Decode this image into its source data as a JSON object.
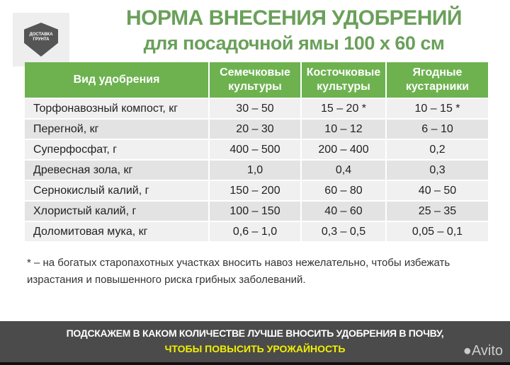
{
  "logo": {
    "text": "ДОСТАВКА ГРУНТА"
  },
  "title": {
    "line1": "НОРМА ВНЕСЕНИЯ УДОБРЕНИЙ",
    "line2": "для посадочной ямы 100 х 60 см"
  },
  "table": {
    "headers": [
      "Вид удобрения",
      "Семечковые культуры",
      "Косточковые культуры",
      "Ягодные кустарники"
    ],
    "rows": [
      [
        "Торфонавозный компост, кг",
        "30 – 50",
        "15 – 20 *",
        "10 – 15 *"
      ],
      [
        "Перегной, кг",
        "20 – 30",
        "10 – 12",
        "6 – 10"
      ],
      [
        "Суперфосфат, г",
        "400 – 500",
        "200 – 400",
        "0,2"
      ],
      [
        "Древесная зола, кг",
        "1,0",
        "0,4",
        "0,3"
      ],
      [
        "Сернокислый калий, г",
        "150 – 200",
        "60 – 80",
        "40 – 50"
      ],
      [
        "Хлористый калий, г",
        "100 – 150",
        "40 – 60",
        "25 – 35"
      ],
      [
        "Доломитовая мука, кг",
        "0,6 – 1,0",
        "0,3 – 0,5",
        "0,05 – 0,1"
      ]
    ]
  },
  "note": "* – на богатых старопахотных участках вносить навоз нежелательно, чтобы избежать израстания и повышенного риска грибных заболеваний.",
  "banner": {
    "line1": "ПОДСКАЖЕМ В КАКОМ КОЛИЧЕСТВЕ ЛУЧШЕ ВНОСИТЬ УДОБРЕНИЯ В ПОЧВУ,",
    "line2": "ЧТОБЫ ПОВЫСИТЬ УРОЖАЙНОСТЬ",
    "watermark": "Avito"
  }
}
